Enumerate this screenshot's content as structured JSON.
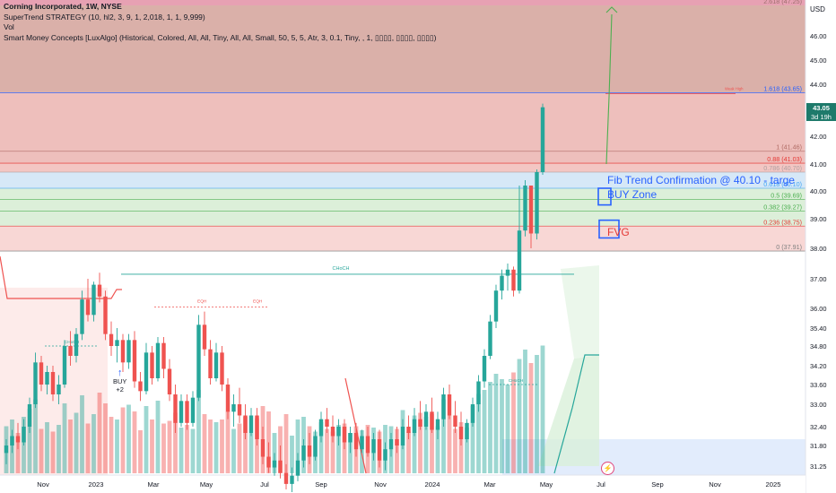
{
  "legend": {
    "title": "Corning Incorporated, 1W, NYSE",
    "supertrend": "SuperTrend STRATEGY (10, hl2, 3, 9, 1, 2,018, 1, 1, 9,999)",
    "vol": "Vol",
    "smc": "Smart Money Concepts [LuxAlgo] (Historical, Colored, All, All, Tiny, All, All, Small, 50, 5, 5, Atr, 3, 0.1, Tiny, , 1, ▯▯▯▯, ▯▯▯▯, ▯▯▯▯)"
  },
  "axis": {
    "currency": "USD",
    "current_price": "43.05",
    "countdown": "3d 19h"
  },
  "annotations": {
    "fib_confirm": "Fib Trend Confirmation @ 40.10 - targe",
    "buy_zone": "BUY Zone",
    "fvg": "FVG",
    "buy_signal": "BUY",
    "buy_count": "+2",
    "buy_arrow": "↑",
    "alert_icon": "⚡"
  },
  "colors": {
    "bull": "#26a69a",
    "bear": "#ef5350",
    "fib_zone": "#d4a29a",
    "premium_zone": "#e8a9a5",
    "accent_blue": "#2962ff",
    "target_arrow": "#4caf50"
  },
  "chart_data": {
    "type": "candlestick",
    "price_ticks": [
      "46.00",
      "45.00",
      "44.00",
      "43.00",
      "42.00",
      "41.00",
      "40.00",
      "39.00",
      "38.00",
      "37.00",
      "36.00",
      "34.80",
      "35.40",
      "34.20",
      "33.60",
      "33.00",
      "32.40",
      "31.80",
      "31.25"
    ],
    "price_tick_values": [
      46,
      45,
      44,
      43,
      42,
      41,
      40,
      39,
      38,
      37,
      36,
      34.8,
      35.4,
      34.2,
      33.6,
      33,
      32.4,
      31.8,
      31.25
    ],
    "time_ticks": [
      {
        "label": "Nov",
        "x_week": 0
      },
      {
        "label": "2023",
        "x_week": 9
      },
      {
        "label": "Mar",
        "x_week": 18
      },
      {
        "label": "May",
        "x_week": 27
      },
      {
        "label": "Jul",
        "x_week": 36
      },
      {
        "label": "Sep",
        "x_week": 45
      },
      {
        "label": "Nov",
        "x_week": 54
      },
      {
        "label": "2024",
        "x_week": 63
      },
      {
        "label": "Mar",
        "x_week": 72
      },
      {
        "label": "May",
        "x_week": 81
      },
      {
        "label": "Jul",
        "x_week": 90
      },
      {
        "label": "Sep",
        "x_week": 99
      },
      {
        "label": "Nov",
        "x_week": 108
      },
      {
        "label": "2025",
        "x_week": 117
      }
    ],
    "fib_levels": [
      {
        "label": "1.618 (43.65)",
        "value": 43.65,
        "color": "#2962ff"
      },
      {
        "label": "1 (41.46)",
        "value": 41.46,
        "color": "#b06b64"
      },
      {
        "label": "0.88 (41.03)",
        "value": 41.03,
        "color": "#e53935"
      },
      {
        "label": "0.786 (40.70)",
        "value": 40.7,
        "color": "#b0a0a0"
      },
      {
        "label": "0.618 (40.10)",
        "value": 40.1,
        "color": "#42a5f5"
      },
      {
        "label": "0.5 (39.69)",
        "value": 39.69,
        "color": "#4caf50"
      },
      {
        "label": "0.382 (39.27)",
        "value": 39.27,
        "color": "#4caf50"
      },
      {
        "label": "0.236 (38.75)",
        "value": 38.75,
        "color": "#e53935"
      },
      {
        "label": "0 (37.91)",
        "value": 37.91,
        "color": "#808080"
      }
    ],
    "top_level_label": "2.618 (47.25)",
    "smc_labels": [
      {
        "text": "CHoCH",
        "x_week": 43,
        "price": 37.45
      },
      {
        "text": "CHoCH",
        "x_week": 12,
        "price": 34.9
      },
      {
        "text": "CHoCH",
        "x_week": 78,
        "price": 33.8
      },
      {
        "text": "EQH",
        "x_week": 27,
        "price": 36.35
      },
      {
        "text": "EQH",
        "x_week": 36,
        "price": 36.2
      },
      {
        "text": "Weak High",
        "x_week": 109,
        "price": 43.75
      }
    ],
    "candles": [
      [
        31.6,
        32.0,
        31.3,
        31.8
      ],
      [
        31.8,
        32.3,
        31.6,
        32.1
      ],
      [
        32.1,
        32.5,
        31.7,
        31.9
      ],
      [
        31.9,
        32.6,
        31.8,
        32.4
      ],
      [
        32.4,
        33.2,
        32.2,
        33.0
      ],
      [
        33.0,
        34.6,
        32.9,
        34.3
      ],
      [
        34.3,
        34.5,
        33.4,
        33.6
      ],
      [
        33.6,
        34.2,
        33.3,
        34.0
      ],
      [
        34.0,
        34.2,
        33.1,
        33.3
      ],
      [
        33.3,
        33.9,
        33.0,
        33.6
      ],
      [
        33.6,
        35.0,
        33.5,
        34.8
      ],
      [
        34.8,
        35.3,
        34.2,
        34.5
      ],
      [
        34.5,
        35.4,
        34.3,
        35.2
      ],
      [
        35.2,
        36.6,
        35.0,
        36.3
      ],
      [
        36.3,
        37.0,
        35.6,
        35.8
      ],
      [
        35.8,
        36.9,
        35.6,
        36.8
      ],
      [
        36.8,
        37.2,
        36.2,
        36.4
      ],
      [
        36.4,
        36.6,
        35.0,
        35.2
      ],
      [
        35.2,
        35.6,
        34.5,
        34.8
      ],
      [
        34.8,
        35.4,
        34.3,
        35.0
      ],
      [
        35.0,
        35.2,
        34.0,
        34.3
      ],
      [
        34.3,
        35.2,
        34.1,
        35.0
      ],
      [
        35.0,
        35.3,
        33.5,
        33.7
      ],
      [
        33.7,
        34.0,
        33.1,
        33.4
      ],
      [
        33.4,
        34.9,
        33.3,
        34.6
      ],
      [
        34.6,
        34.8,
        33.6,
        33.8
      ],
      [
        33.8,
        35.1,
        33.7,
        34.9
      ],
      [
        34.9,
        35.1,
        33.8,
        34.1
      ],
      [
        34.1,
        34.4,
        33.1,
        33.3
      ],
      [
        33.3,
        33.6,
        32.2,
        32.5
      ],
      [
        32.5,
        33.3,
        32.4,
        33.1
      ],
      [
        33.1,
        33.3,
        32.3,
        32.5
      ],
      [
        32.5,
        33.4,
        32.4,
        33.2
      ],
      [
        33.2,
        35.8,
        33.1,
        35.5
      ],
      [
        35.5,
        35.9,
        34.5,
        34.7
      ],
      [
        34.7,
        35.0,
        33.6,
        33.8
      ],
      [
        33.8,
        34.9,
        33.7,
        34.6
      ],
      [
        34.6,
        34.8,
        33.4,
        33.6
      ],
      [
        33.6,
        33.8,
        32.6,
        32.8
      ],
      [
        32.8,
        33.3,
        32.4,
        33.0
      ],
      [
        33.0,
        33.5,
        32.5,
        32.7
      ],
      [
        32.7,
        33.0,
        32.0,
        32.2
      ],
      [
        32.2,
        32.9,
        32.1,
        32.7
      ],
      [
        32.7,
        32.9,
        31.8,
        32.0
      ],
      [
        32.0,
        32.4,
        31.3,
        31.5
      ],
      [
        31.5,
        31.9,
        31.0,
        31.2
      ],
      [
        31.2,
        31.6,
        30.9,
        31.4
      ],
      [
        31.4,
        31.8,
        30.8,
        31.0
      ],
      [
        31.0,
        31.3,
        30.4,
        30.6
      ],
      [
        30.6,
        31.2,
        30.3,
        30.9
      ],
      [
        30.9,
        31.6,
        30.7,
        31.4
      ],
      [
        31.4,
        32.0,
        31.2,
        31.8
      ],
      [
        31.8,
        32.2,
        31.3,
        31.5
      ],
      [
        31.5,
        32.3,
        31.4,
        32.1
      ],
      [
        32.1,
        32.8,
        31.9,
        32.6
      ],
      [
        32.6,
        32.9,
        32.2,
        32.4
      ],
      [
        32.4,
        32.7,
        31.9,
        32.1
      ],
      [
        32.1,
        32.6,
        31.8,
        32.4
      ],
      [
        32.4,
        32.6,
        31.7,
        31.9
      ],
      [
        31.9,
        32.4,
        31.6,
        32.2
      ],
      [
        32.2,
        32.5,
        31.5,
        31.7
      ],
      [
        31.7,
        32.3,
        31.6,
        32.1
      ],
      [
        32.1,
        32.4,
        31.5,
        31.6
      ],
      [
        31.6,
        32.2,
        31.4,
        32.0
      ],
      [
        32.0,
        32.3,
        31.2,
        31.4
      ],
      [
        31.4,
        31.9,
        31.1,
        31.7
      ],
      [
        31.7,
        32.2,
        31.5,
        32.0
      ],
      [
        32.0,
        32.4,
        31.6,
        31.8
      ],
      [
        31.8,
        32.6,
        31.7,
        32.4
      ],
      [
        32.4,
        32.7,
        32.0,
        32.2
      ],
      [
        32.2,
        32.9,
        32.1,
        32.6
      ],
      [
        32.6,
        33.1,
        32.3,
        32.4
      ],
      [
        32.4,
        33.0,
        32.3,
        32.8
      ],
      [
        32.8,
        33.2,
        32.2,
        32.3
      ],
      [
        32.3,
        32.8,
        32.0,
        32.6
      ],
      [
        32.6,
        33.5,
        32.4,
        33.3
      ],
      [
        33.3,
        33.6,
        32.6,
        32.7
      ],
      [
        32.7,
        33.1,
        32.2,
        32.4
      ],
      [
        32.4,
        32.8,
        31.8,
        32.0
      ],
      [
        32.0,
        32.6,
        31.9,
        32.5
      ],
      [
        32.5,
        33.2,
        32.4,
        33.0
      ],
      [
        33.0,
        33.9,
        32.8,
        33.7
      ],
      [
        33.7,
        34.7,
        33.5,
        34.5
      ],
      [
        34.5,
        35.8,
        34.4,
        35.6
      ],
      [
        35.6,
        36.8,
        35.4,
        36.6
      ],
      [
        36.6,
        37.3,
        36.3,
        37.1
      ],
      [
        37.1,
        37.5,
        36.6,
        37.3
      ],
      [
        37.3,
        37.4,
        36.4,
        36.6
      ],
      [
        36.6,
        40.2,
        36.5,
        38.6
      ],
      [
        38.6,
        40.4,
        38.4,
        40.2
      ],
      [
        40.2,
        40.2,
        38.0,
        38.5
      ],
      [
        38.5,
        40.8,
        38.3,
        40.7
      ],
      [
        40.7,
        43.2,
        40.6,
        43.05
      ]
    ],
    "volumes": [
      0.35,
      0.4,
      0.3,
      0.42,
      0.48,
      0.55,
      0.33,
      0.38,
      0.31,
      0.36,
      0.52,
      0.4,
      0.45,
      0.58,
      0.37,
      0.44,
      0.6,
      0.52,
      0.42,
      0.4,
      0.49,
      0.51,
      0.46,
      0.32,
      0.5,
      0.4,
      0.54,
      0.37,
      0.39,
      0.45,
      0.34,
      0.36,
      0.33,
      0.62,
      0.44,
      0.4,
      0.38,
      0.4,
      0.46,
      0.33,
      0.37,
      0.42,
      0.3,
      0.41,
      0.5,
      0.46,
      0.3,
      0.35,
      0.44,
      0.28,
      0.4,
      0.42,
      0.35,
      0.31,
      0.38,
      0.33,
      0.31,
      0.36,
      0.37,
      0.3,
      0.35,
      0.32,
      0.36,
      0.34,
      0.31,
      0.36,
      0.35,
      0.33,
      0.47,
      0.31,
      0.43,
      0.45,
      0.42,
      0.44,
      0.35,
      0.55,
      0.43,
      0.33,
      0.38,
      0.34,
      0.5,
      0.59,
      0.62,
      0.68,
      0.74,
      0.7,
      0.66,
      0.75,
      0.85,
      0.92,
      0.82,
      0.88,
      0.95
    ],
    "supertrend_down": [
      [
        -2,
        37.9
      ],
      [
        3,
        36.7
      ],
      [
        9,
        36.7
      ],
      [
        10,
        37.2
      ],
      [
        11,
        37.2
      ]
    ],
    "supertrend_red_tail": [
      [
        50,
        33.9
      ],
      [
        55,
        30.8
      ]
    ],
    "supertrend_up": [
      [
        82,
        30.5
      ],
      [
        85,
        32.2
      ],
      [
        88,
        34.3
      ],
      [
        89,
        34.6
      ],
      [
        92,
        34.6
      ]
    ],
    "choch_line_price": 37.15,
    "eqh_line_price": 36.05,
    "target_arrow": {
      "from_week": 92,
      "from_price": 41.0,
      "to_week": 98,
      "to_price": 46.9
    }
  }
}
